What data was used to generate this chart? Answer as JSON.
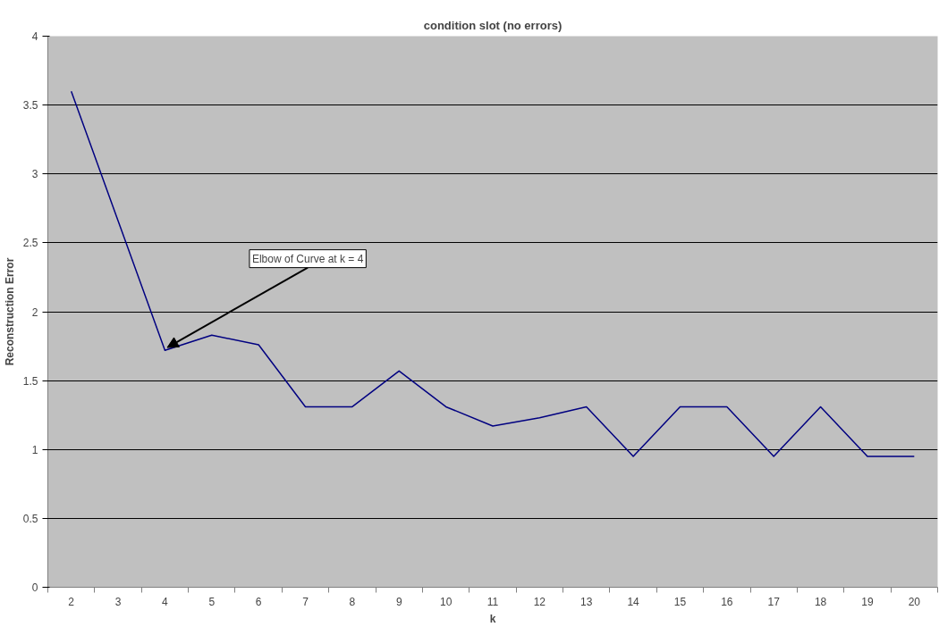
{
  "chart_data": {
    "type": "line",
    "title": "condition slot (no errors)",
    "xlabel": "k",
    "ylabel": "Reconstruction Error",
    "categories": [
      "2",
      "3",
      "4",
      "5",
      "6",
      "7",
      "8",
      "9",
      "10",
      "11",
      "12",
      "13",
      "14",
      "15",
      "16",
      "17",
      "18",
      "19",
      "20"
    ],
    "series": [
      {
        "color": "#000080",
        "values": [
          3.6,
          2.66,
          1.72,
          1.83,
          1.76,
          1.31,
          1.31,
          1.57,
          1.31,
          1.17,
          1.23,
          1.31,
          0.95,
          1.31,
          1.31,
          0.95,
          1.31,
          0.95,
          0.95
        ]
      }
    ],
    "ylim": [
      0,
      4
    ],
    "yticks": [
      0,
      0.5,
      1,
      1.5,
      2,
      2.5,
      3,
      3.5,
      4
    ],
    "grid": "y",
    "line_style": "solid",
    "annotations": [
      {
        "text": "Elbow of Curve at k = 4",
        "x": "4",
        "y": 1.72
      }
    ]
  }
}
